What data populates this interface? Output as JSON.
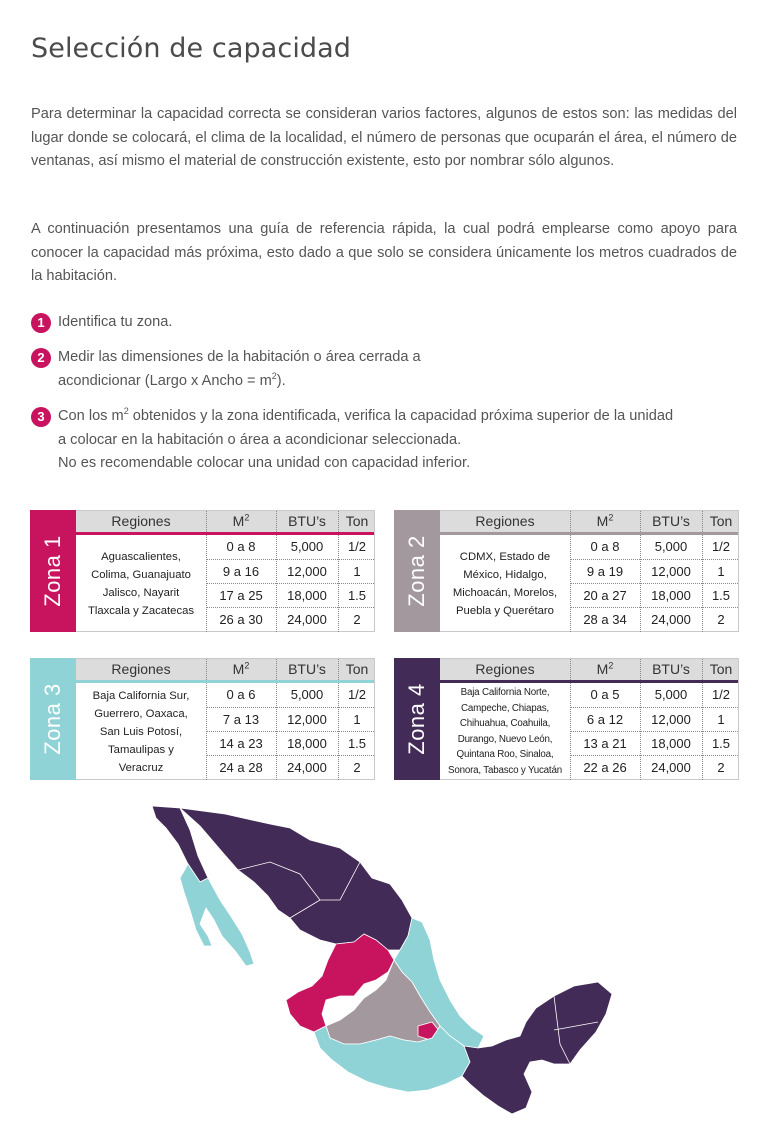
{
  "title": "Selección de capacidad",
  "paragraphs": {
    "p1": "Para determinar la capacidad correcta se consideran varios factores, algunos de estos son: las medidas del lugar donde se colocará, el clima de la localidad, el número de personas que ocuparán el área, el número de ventanas, así mismo el material de construcción existente, esto por nombrar sólo algunos.",
    "p2": "A continuación presentamos una guía de referencia rápida, la cual podrá emplearse como apoyo para conocer la capacidad más próxima, esto dado a que solo se considera únicamente los metros cuadrados de la habitación."
  },
  "steps": [
    {
      "num": "1",
      "line1": "Identifica tu zona."
    },
    {
      "num": "2",
      "line1": "Medir las dimensiones de la habitación o área cerrada a",
      "line2_pre": "acondicionar (Largo x Ancho = m",
      "line2_sup": "2",
      "line2_post": ")."
    },
    {
      "num": "3",
      "line1_pre": "Con los m",
      "line1_sup": "2",
      "line1_post": " obtenidos y la zona identificada, verifica la capacidad próxima superior de la unidad",
      "line2": "a colocar en la habitación o área a acondicionar seleccionada.",
      "line3": "No es recomendable colocar una unidad con capacidad inferior."
    }
  ],
  "headers": {
    "regions": "Regiones",
    "m2_base": "M",
    "m2_sup": "2",
    "btu": "BTU’s",
    "ton": "Ton"
  },
  "zones": [
    {
      "label": "Zona 1",
      "color": "#c8145e",
      "regions": [
        "Aguascalientes,",
        "Colima, Guanajuato",
        "Jalisco, Nayarit",
        "Tlaxcala y Zacatecas"
      ],
      "rows": [
        {
          "m2": "0 a 8",
          "btu": "5,000",
          "ton": "1/2"
        },
        {
          "m2": "9 a 16",
          "btu": "12,000",
          "ton": "1"
        },
        {
          "m2": "17 a 25",
          "btu": "18,000",
          "ton": "1.5"
        },
        {
          "m2": "26 a 30",
          "btu": "24,000",
          "ton": "2"
        }
      ]
    },
    {
      "label": "Zona 2",
      "color": "#a3989e",
      "regions": [
        "CDMX, Estado de",
        "México, Hidalgo,",
        "Michoacán, Morelos,",
        "Puebla y Querétaro"
      ],
      "rows": [
        {
          "m2": "0 a 8",
          "btu": "5,000",
          "ton": "1/2"
        },
        {
          "m2": "9 a 19",
          "btu": "12,000",
          "ton": "1"
        },
        {
          "m2": "20 a 27",
          "btu": "18,000",
          "ton": "1.5"
        },
        {
          "m2": "28 a 34",
          "btu": "24,000",
          "ton": "2"
        }
      ]
    },
    {
      "label": "Zona 3",
      "color": "#8fd3d7",
      "regions": [
        "Baja California Sur,",
        "Guerrero, Oaxaca,",
        "San Luis Potosí,",
        "Tamaulipas y",
        "Veracruz"
      ],
      "rows": [
        {
          "m2": "0 a 6",
          "btu": "5,000",
          "ton": "1/2"
        },
        {
          "m2": "7 a 13",
          "btu": "12,000",
          "ton": "1"
        },
        {
          "m2": "14 a 23",
          "btu": "18,000",
          "ton": "1.5"
        },
        {
          "m2": "24 a 28",
          "btu": "24,000",
          "ton": "2"
        }
      ]
    },
    {
      "label": "Zona 4",
      "color": "#432b57",
      "regions": [
        "Baja California Norte,",
        "Campeche, Chiapas,",
        "Chihuahua, Coahuila,",
        "Durango, Nuevo León,",
        "Quintana Roo, Sinaloa,",
        "Sonora, Tabasco y Yucatán"
      ],
      "rows": [
        {
          "m2": "0 a 5",
          "btu": "5,000",
          "ton": "1/2"
        },
        {
          "m2": "6 a 12",
          "btu": "12,000",
          "ton": "1"
        },
        {
          "m2": "13 a 21",
          "btu": "18,000",
          "ton": "1.5"
        },
        {
          "m2": "22 a 26",
          "btu": "24,000",
          "ton": "2"
        }
      ]
    }
  ],
  "map_colors": {
    "zone1": "#c8145e",
    "zone2": "#a3989e",
    "zone3": "#8fd3d7",
    "zone4": "#432b57"
  }
}
